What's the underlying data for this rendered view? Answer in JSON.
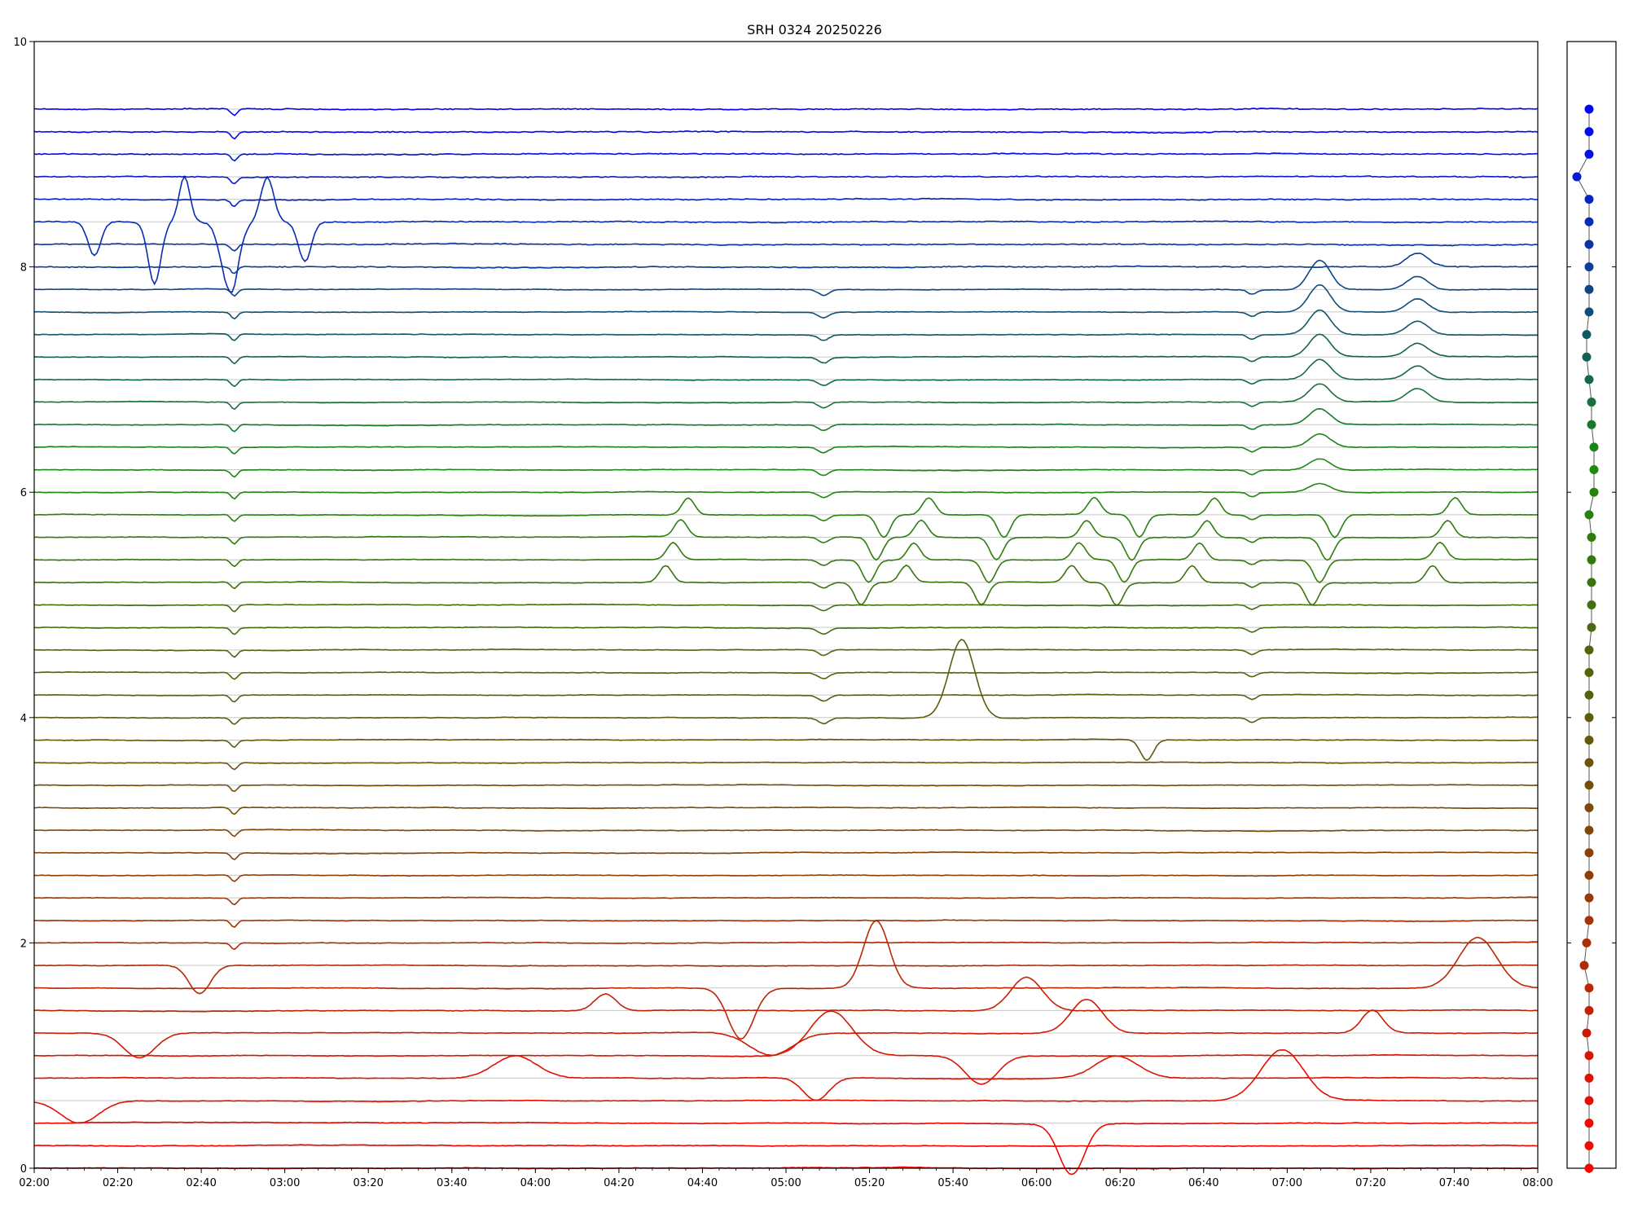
{
  "chart_data": {
    "type": "line",
    "title": "SRH 0324 20250226",
    "xlabel": "",
    "ylabel": "",
    "xlim": [
      "02:00",
      "08:00"
    ],
    "ylim": [
      0,
      10
    ],
    "grid": true,
    "x_ticks": [
      "02:00",
      "02:20",
      "02:40",
      "03:00",
      "03:20",
      "03:40",
      "04:00",
      "04:20",
      "04:40",
      "05:00",
      "05:20",
      "05:40",
      "06:00",
      "06:20",
      "06:40",
      "07:00",
      "07:20",
      "07:40",
      "08:00"
    ],
    "y_ticks": [
      "0",
      "2",
      "4",
      "6",
      "8",
      "10"
    ],
    "n_channels": 48,
    "channel_spacing": 0.2,
    "channel_color_from": "#ff0000",
    "channel_color_mid1": "#7a4a08",
    "channel_color_mid2": "#1a8a10",
    "channel_color_to": "#0000ff",
    "side_panel": {
      "type": "scatter",
      "x_offsets": [
        0,
        0,
        0,
        0,
        0,
        0,
        -0.01,
        0,
        0,
        -0.02,
        -0.01,
        0,
        0,
        0,
        0,
        0,
        0,
        0,
        0,
        0,
        0,
        0,
        0,
        0,
        0.01,
        0.01,
        0.01,
        0.01,
        0.01,
        0,
        0.02,
        0.02,
        0.02,
        0.01,
        0.01,
        0,
        -0.01,
        -0.01,
        0,
        0,
        0,
        0,
        0,
        0,
        -0.05,
        0,
        0,
        0
      ]
    }
  }
}
